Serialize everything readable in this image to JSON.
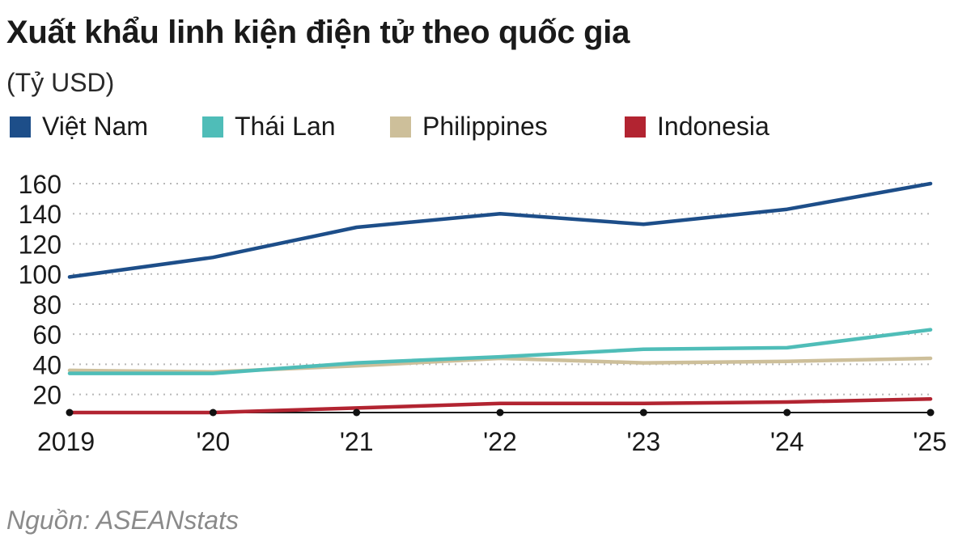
{
  "title": "Xuất khẩu linh kiện điện tử theo quốc gia",
  "subtitle": "(Tỷ USD)",
  "source": "Nguồn:  ASEANstats",
  "chart_data": {
    "type": "line",
    "x": [
      "2019",
      "'20",
      "'21",
      "'22",
      "'23",
      "'24",
      "'25"
    ],
    "yticks": [
      20,
      40,
      60,
      80,
      100,
      120,
      140,
      160
    ],
    "ylim": [
      8,
      160
    ],
    "grid": true,
    "legend_position": "top",
    "series": [
      {
        "name": "Việt Nam",
        "color": "#1d4e89",
        "values": [
          98,
          111,
          131,
          140,
          133,
          143,
          160
        ]
      },
      {
        "name": "Thái Lan",
        "color": "#4fbdb8",
        "values": [
          34,
          34,
          41,
          45,
          50,
          51,
          63
        ]
      },
      {
        "name": "Philippines",
        "color": "#cdbf9a",
        "values": [
          36,
          35,
          39,
          44,
          41,
          42,
          44
        ]
      },
      {
        "name": "Indonesia",
        "color": "#b22431",
        "values": [
          8,
          8,
          11,
          14,
          14,
          15,
          17
        ]
      }
    ]
  }
}
